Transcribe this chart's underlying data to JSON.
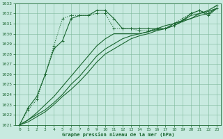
{
  "title": "Graphe pression niveau de la mer (hPa)",
  "bg_color": "#c8eae0",
  "grid_color": "#7db89a",
  "line_color": "#1a6630",
  "xlim": [
    -0.5,
    23.5
  ],
  "ylim": [
    1021,
    1033
  ],
  "yticks": [
    1021,
    1022,
    1023,
    1024,
    1025,
    1026,
    1027,
    1028,
    1029,
    1030,
    1031,
    1032,
    1033
  ],
  "xticks": [
    0,
    1,
    2,
    3,
    4,
    5,
    6,
    7,
    8,
    9,
    10,
    11,
    12,
    13,
    14,
    15,
    16,
    17,
    18,
    19,
    20,
    21,
    22,
    23
  ],
  "series": [
    {
      "x": [
        0,
        1,
        2,
        3,
        4,
        5,
        6,
        7,
        8,
        9,
        10,
        11,
        12,
        13,
        14,
        15,
        16,
        17,
        18,
        19,
        20,
        21,
        22,
        23
      ],
      "y": [
        1021.0,
        1022.7,
        1023.8,
        1026.0,
        1028.5,
        1029.3,
        1031.5,
        1031.8,
        1031.8,
        1032.3,
        1032.3,
        1031.5,
        1030.5,
        1030.5,
        1030.5,
        1030.5,
        1030.5,
        1030.5,
        1030.8,
        1031.3,
        1032.0,
        1032.3,
        1031.8,
        1032.5
      ],
      "marker": "+",
      "ls": "-",
      "lw": 0.8
    },
    {
      "x": [
        0,
        1,
        2,
        3,
        4,
        5,
        6,
        7,
        8,
        9,
        10,
        11,
        12,
        13,
        14,
        15,
        16,
        17,
        18,
        19,
        20,
        21,
        22,
        23
      ],
      "y": [
        1021.0,
        1022.5,
        1023.5,
        1026.0,
        1028.8,
        1031.5,
        1031.8,
        1031.8,
        1031.8,
        1032.0,
        1032.0,
        1030.5,
        1030.5,
        1030.5,
        1030.3,
        1030.3,
        1030.5,
        1030.5,
        1031.0,
        1031.5,
        1032.0,
        1032.3,
        1032.0,
        1032.8
      ],
      "marker": "+",
      "ls": ":",
      "lw": 0.8
    },
    {
      "x": [
        0,
        1,
        2,
        3,
        4,
        5,
        6,
        7,
        8,
        9,
        10,
        11,
        12,
        13,
        14,
        15,
        16,
        17,
        18,
        19,
        20,
        21,
        22,
        23
      ],
      "y": [
        1021.0,
        1021.5,
        1022.0,
        1022.5,
        1023.2,
        1024.0,
        1025.0,
        1025.8,
        1026.8,
        1027.8,
        1028.5,
        1029.0,
        1029.5,
        1029.8,
        1030.0,
        1030.2,
        1030.4,
        1030.5,
        1030.8,
        1031.2,
        1031.5,
        1031.8,
        1032.0,
        1032.5
      ],
      "marker": null,
      "ls": "-",
      "lw": 0.8
    },
    {
      "x": [
        0,
        1,
        2,
        3,
        4,
        5,
        6,
        7,
        8,
        9,
        10,
        11,
        12,
        13,
        14,
        15,
        16,
        17,
        18,
        19,
        20,
        21,
        22,
        23
      ],
      "y": [
        1021.0,
        1021.3,
        1021.8,
        1022.3,
        1023.0,
        1023.8,
        1024.5,
        1025.3,
        1026.2,
        1027.2,
        1028.0,
        1028.5,
        1029.0,
        1029.5,
        1029.8,
        1030.0,
        1030.3,
        1030.5,
        1031.0,
        1031.3,
        1031.5,
        1032.0,
        1032.3,
        1032.8
      ],
      "marker": null,
      "ls": "-",
      "lw": 0.8
    },
    {
      "x": [
        0,
        1,
        2,
        3,
        4,
        5,
        6,
        7,
        8,
        9,
        10,
        11,
        12,
        13,
        14,
        15,
        16,
        17,
        18,
        19,
        20,
        21,
        22,
        23
      ],
      "y": [
        1021.0,
        1021.5,
        1022.2,
        1023.0,
        1023.8,
        1024.8,
        1025.8,
        1026.8,
        1027.8,
        1028.8,
        1029.5,
        1030.0,
        1030.0,
        1030.0,
        1030.0,
        1030.2,
        1030.5,
        1030.8,
        1031.0,
        1031.3,
        1031.8,
        1032.0,
        1032.2,
        1032.5
      ],
      "marker": null,
      "ls": "-",
      "lw": 0.8
    }
  ]
}
